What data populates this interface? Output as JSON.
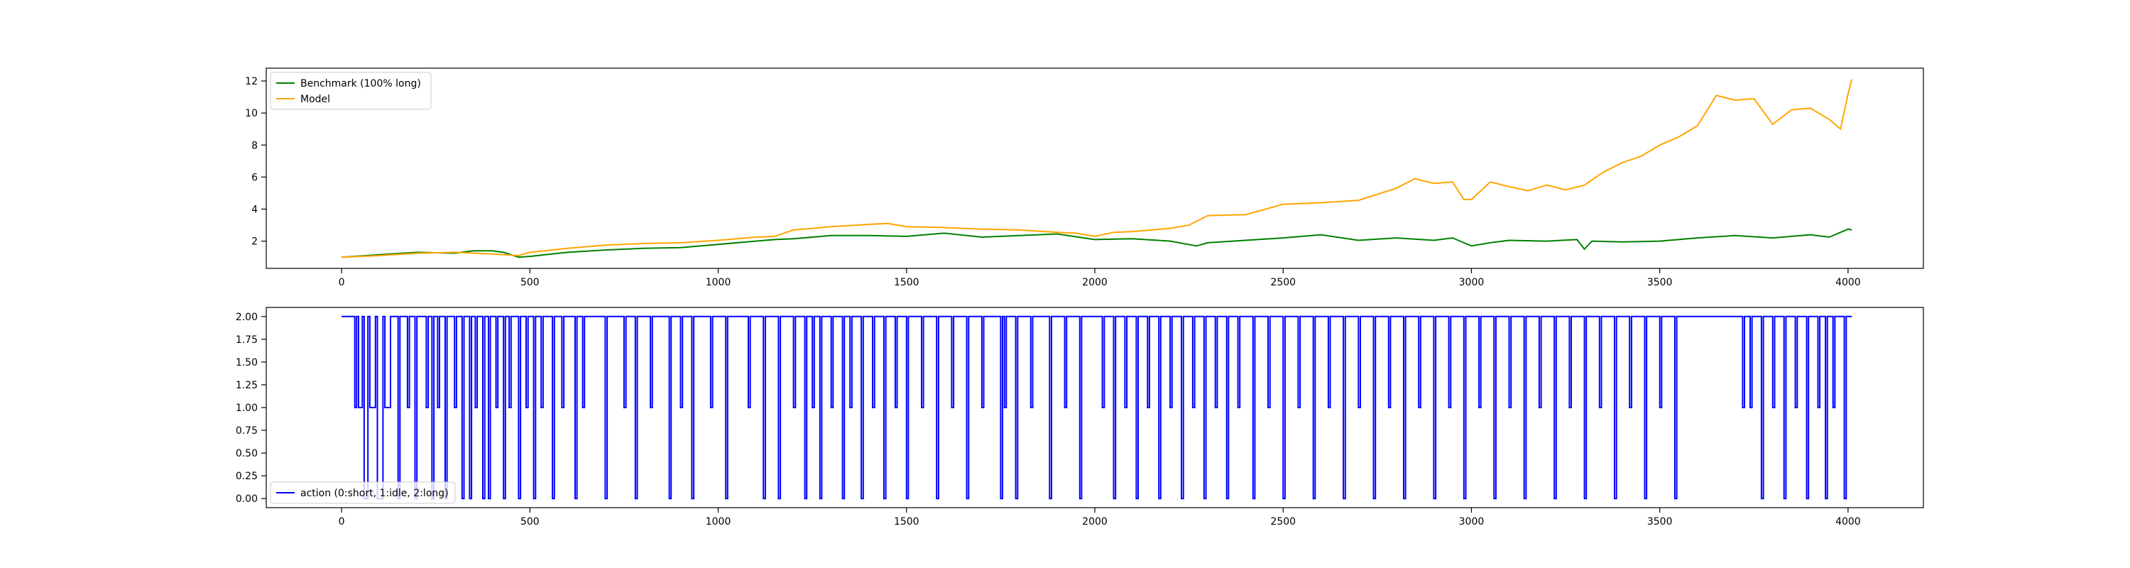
{
  "chart_data": [
    {
      "type": "line",
      "title": "",
      "xlabel": "",
      "ylabel": "",
      "xlim": [
        -200,
        4200
      ],
      "ylim": [
        0.3,
        12.8
      ],
      "xticks": [
        0,
        500,
        1000,
        1500,
        2000,
        2500,
        3000,
        3500,
        4000
      ],
      "xtick_labels": [
        "0",
        "500",
        "1000",
        "1500",
        "2000",
        "2500",
        "3000",
        "3500",
        "4000"
      ],
      "yticks": [
        2,
        4,
        6,
        8,
        10,
        12
      ],
      "ytick_labels": [
        "2",
        "4",
        "6",
        "8",
        "10",
        "12"
      ],
      "grid": false,
      "legend_position": "upper-left",
      "series": [
        {
          "name": "Benchmark (100% long)",
          "color": "#008000",
          "x": [
            0,
            100,
            200,
            300,
            350,
            400,
            430,
            470,
            500,
            600,
            700,
            800,
            900,
            1000,
            1100,
            1150,
            1200,
            1300,
            1400,
            1500,
            1600,
            1700,
            1800,
            1900,
            2000,
            2100,
            2200,
            2270,
            2300,
            2400,
            2500,
            2600,
            2700,
            2800,
            2900,
            2950,
            3000,
            3050,
            3100,
            3200,
            3280,
            3300,
            3320,
            3400,
            3500,
            3600,
            3700,
            3800,
            3900,
            3950,
            4000,
            4010
          ],
          "y": [
            1.0,
            1.15,
            1.3,
            1.25,
            1.4,
            1.4,
            1.3,
            1.0,
            1.05,
            1.3,
            1.45,
            1.55,
            1.6,
            1.8,
            2.0,
            2.1,
            2.15,
            2.35,
            2.35,
            2.3,
            2.5,
            2.25,
            2.35,
            2.45,
            2.1,
            2.15,
            2.0,
            1.7,
            1.9,
            2.05,
            2.2,
            2.4,
            2.05,
            2.2,
            2.05,
            2.2,
            1.7,
            1.9,
            2.05,
            2.0,
            2.1,
            1.5,
            2.0,
            1.95,
            2.0,
            2.2,
            2.35,
            2.2,
            2.4,
            2.25,
            2.75,
            2.7
          ]
        },
        {
          "name": "Model",
          "color": "#FFA500",
          "x": [
            0,
            100,
            200,
            300,
            400,
            470,
            500,
            600,
            700,
            800,
            900,
            1000,
            1100,
            1150,
            1200,
            1300,
            1400,
            1450,
            1500,
            1600,
            1700,
            1800,
            1900,
            1950,
            2000,
            2050,
            2100,
            2200,
            2250,
            2300,
            2400,
            2500,
            2600,
            2700,
            2800,
            2850,
            2900,
            2950,
            2980,
            3000,
            3050,
            3100,
            3150,
            3200,
            3250,
            3300,
            3350,
            3400,
            3450,
            3500,
            3550,
            3600,
            3650,
            3700,
            3750,
            3800,
            3850,
            3900,
            3950,
            3980,
            4000,
            4010
          ],
          "y": [
            1.0,
            1.1,
            1.25,
            1.3,
            1.2,
            1.1,
            1.3,
            1.55,
            1.75,
            1.85,
            1.9,
            2.05,
            2.25,
            2.3,
            2.7,
            2.9,
            3.05,
            3.1,
            2.9,
            2.85,
            2.75,
            2.7,
            2.55,
            2.5,
            2.3,
            2.55,
            2.6,
            2.8,
            3.0,
            3.6,
            3.65,
            4.3,
            4.4,
            4.55,
            5.3,
            5.9,
            5.6,
            5.7,
            4.6,
            4.6,
            5.7,
            5.4,
            5.15,
            5.5,
            5.2,
            5.5,
            6.3,
            6.9,
            7.3,
            8.0,
            8.5,
            9.2,
            11.1,
            10.8,
            10.9,
            9.3,
            10.2,
            10.3,
            9.6,
            9.0,
            11.2,
            12.1
          ]
        }
      ]
    },
    {
      "type": "line",
      "title": "",
      "xlabel": "",
      "ylabel": "",
      "xlim": [
        -200,
        4200
      ],
      "ylim": [
        -0.1,
        2.1
      ],
      "xticks": [
        0,
        500,
        1000,
        1500,
        2000,
        2500,
        3000,
        3500,
        4000
      ],
      "xtick_labels": [
        "0",
        "500",
        "1000",
        "1500",
        "2000",
        "2500",
        "3000",
        "3500",
        "4000"
      ],
      "yticks": [
        0.0,
        0.25,
        0.5,
        0.75,
        1.0,
        1.25,
        1.5,
        1.75,
        2.0
      ],
      "ytick_labels": [
        "0.00",
        "0.25",
        "0.50",
        "0.75",
        "1.00",
        "1.25",
        "1.50",
        "1.75",
        "2.00"
      ],
      "grid": false,
      "legend_position": "lower-left",
      "series": [
        {
          "name": "action (0:short, 1:idle, 2:long)",
          "color": "#0000FF",
          "step": true,
          "x": [
            0,
            30,
            35,
            40,
            45,
            55,
            60,
            70,
            75,
            90,
            95,
            110,
            115,
            130,
            150,
            155,
            175,
            180,
            195,
            200,
            225,
            230,
            240,
            245,
            255,
            260,
            275,
            280,
            300,
            305,
            320,
            325,
            340,
            345,
            355,
            360,
            375,
            380,
            390,
            395,
            410,
            415,
            430,
            435,
            445,
            450,
            470,
            475,
            490,
            495,
            510,
            515,
            530,
            535,
            560,
            565,
            585,
            590,
            620,
            625,
            640,
            645,
            700,
            705,
            750,
            755,
            780,
            785,
            820,
            825,
            870,
            875,
            900,
            905,
            930,
            935,
            980,
            985,
            1020,
            1025,
            1080,
            1085,
            1120,
            1125,
            1160,
            1165,
            1200,
            1205,
            1230,
            1235,
            1250,
            1255,
            1270,
            1275,
            1300,
            1305,
            1330,
            1335,
            1350,
            1355,
            1380,
            1385,
            1410,
            1415,
            1440,
            1445,
            1470,
            1475,
            1500,
            1505,
            1540,
            1545,
            1580,
            1585,
            1620,
            1625,
            1660,
            1665,
            1700,
            1705,
            1750,
            1755,
            1760,
            1765,
            1790,
            1795,
            1830,
            1835,
            1880,
            1885,
            1920,
            1925,
            1960,
            1965,
            2020,
            2025,
            2050,
            2055,
            2080,
            2085,
            2110,
            2115,
            2140,
            2145,
            2170,
            2175,
            2200,
            2205,
            2230,
            2235,
            2260,
            2265,
            2290,
            2295,
            2320,
            2325,
            2350,
            2355,
            2380,
            2385,
            2420,
            2425,
            2460,
            2465,
            2500,
            2505,
            2540,
            2545,
            2580,
            2585,
            2620,
            2625,
            2660,
            2665,
            2700,
            2705,
            2740,
            2745,
            2780,
            2785,
            2820,
            2825,
            2860,
            2865,
            2900,
            2905,
            2940,
            2945,
            2980,
            2985,
            3020,
            3025,
            3060,
            3065,
            3100,
            3105,
            3140,
            3145,
            3180,
            3185,
            3220,
            3225,
            3260,
            3265,
            3300,
            3305,
            3340,
            3345,
            3380,
            3385,
            3420,
            3425,
            3460,
            3465,
            3500,
            3505,
            3540,
            3545,
            3720,
            3725,
            3740,
            3745,
            3770,
            3775,
            3800,
            3805,
            3830,
            3835,
            3860,
            3865,
            3890,
            3895,
            3920,
            3925,
            3940,
            3945,
            3960,
            3965,
            3990,
            3995,
            4010
          ],
          "y": [
            2,
            2,
            1,
            2,
            1,
            2,
            0,
            2,
            1,
            2,
            0,
            2,
            1,
            2,
            0,
            2,
            1,
            2,
            0,
            2,
            1,
            2,
            0,
            2,
            1,
            2,
            0,
            2,
            1,
            2,
            0,
            2,
            0,
            2,
            1,
            2,
            0,
            2,
            0,
            2,
            1,
            2,
            0,
            2,
            1,
            2,
            0,
            2,
            1,
            2,
            0,
            2,
            1,
            2,
            0,
            2,
            1,
            2,
            0,
            2,
            1,
            2,
            0,
            2,
            1,
            2,
            0,
            2,
            1,
            2,
            0,
            2,
            1,
            2,
            0,
            2,
            1,
            2,
            0,
            2,
            1,
            2,
            0,
            2,
            0,
            2,
            1,
            2,
            0,
            2,
            1,
            2,
            0,
            2,
            1,
            2,
            0,
            2,
            1,
            2,
            0,
            2,
            1,
            2,
            0,
            2,
            1,
            2,
            0,
            2,
            1,
            2,
            0,
            2,
            1,
            2,
            0,
            2,
            1,
            2,
            0,
            2,
            1,
            2,
            0,
            2,
            1,
            2,
            0,
            2,
            1,
            2,
            0,
            2,
            1,
            2,
            0,
            2,
            1,
            2,
            0,
            2,
            1,
            2,
            0,
            2,
            1,
            2,
            0,
            2,
            1,
            2,
            0,
            2,
            1,
            2,
            0,
            2,
            1,
            2,
            0,
            2,
            1,
            2,
            0,
            2,
            1,
            2,
            0,
            2,
            1,
            2,
            0,
            2,
            1,
            2,
            0,
            2,
            1,
            2,
            0,
            2,
            1,
            2,
            0,
            2,
            1,
            2,
            0,
            2,
            1,
            2,
            0,
            2,
            1,
            2,
            0,
            2,
            1,
            2,
            0,
            2,
            1,
            2,
            0,
            2,
            1,
            2,
            0,
            2,
            1,
            2,
            0,
            2,
            1,
            2,
            0,
            2,
            1,
            2,
            1,
            2,
            0,
            2,
            1,
            2,
            0,
            2,
            1,
            2,
            0,
            2,
            1,
            2,
            0,
            2,
            1,
            2,
            0,
            2,
            2
          ]
        }
      ]
    }
  ]
}
